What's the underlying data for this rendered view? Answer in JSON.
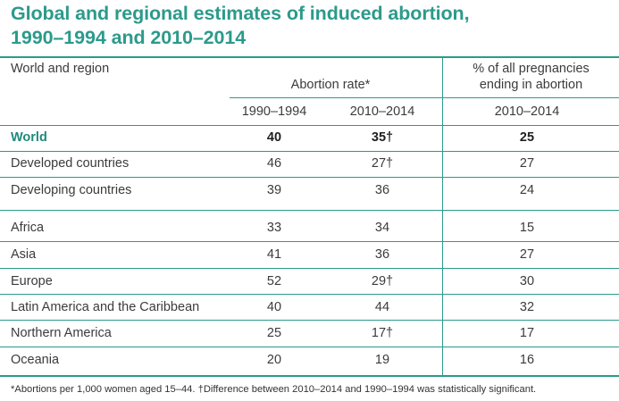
{
  "title_line1": "Global and regional estimates of induced abortion,",
  "title_line2": "1990–1994 and 2010–2014",
  "header": {
    "region_col": "World and region",
    "abortion_rate": "Abortion rate*",
    "pct_line1": "% of all pregnancies",
    "pct_line2": "ending in abortion",
    "years": [
      "1990–1994",
      "2010–2014",
      "2010–2014"
    ]
  },
  "rows": [
    {
      "region": "World",
      "r1990": "40",
      "r2010": "35†",
      "pct": "25"
    },
    {
      "region": "Developed countries",
      "r1990": "46",
      "r2010": "27†",
      "pct": "27"
    },
    {
      "region": "Developing countries",
      "r1990": "39",
      "r2010": "36",
      "pct": "24"
    },
    {
      "region": "Africa",
      "r1990": "33",
      "r2010": "34",
      "pct": "15"
    },
    {
      "region": "Asia",
      "r1990": "41",
      "r2010": "36",
      "pct": "27"
    },
    {
      "region": "Europe",
      "r1990": "52",
      "r2010": "29†",
      "pct": "30"
    },
    {
      "region": "Latin America and the Caribbean",
      "r1990": "40",
      "r2010": "44",
      "pct": "32"
    },
    {
      "region": "Northern America",
      "r1990": "25",
      "r2010": "17†",
      "pct": "17"
    },
    {
      "region": "Oceania",
      "r1990": "20",
      "r2010": "19",
      "pct": "16"
    }
  ],
  "footnote": "*Abortions per 1,000 women aged 15–44. †Difference between 2010–2014 and 1990–1994 was statistically significant.",
  "colors": {
    "accent": "#2c9a8b",
    "text": "#3b3b3b"
  }
}
